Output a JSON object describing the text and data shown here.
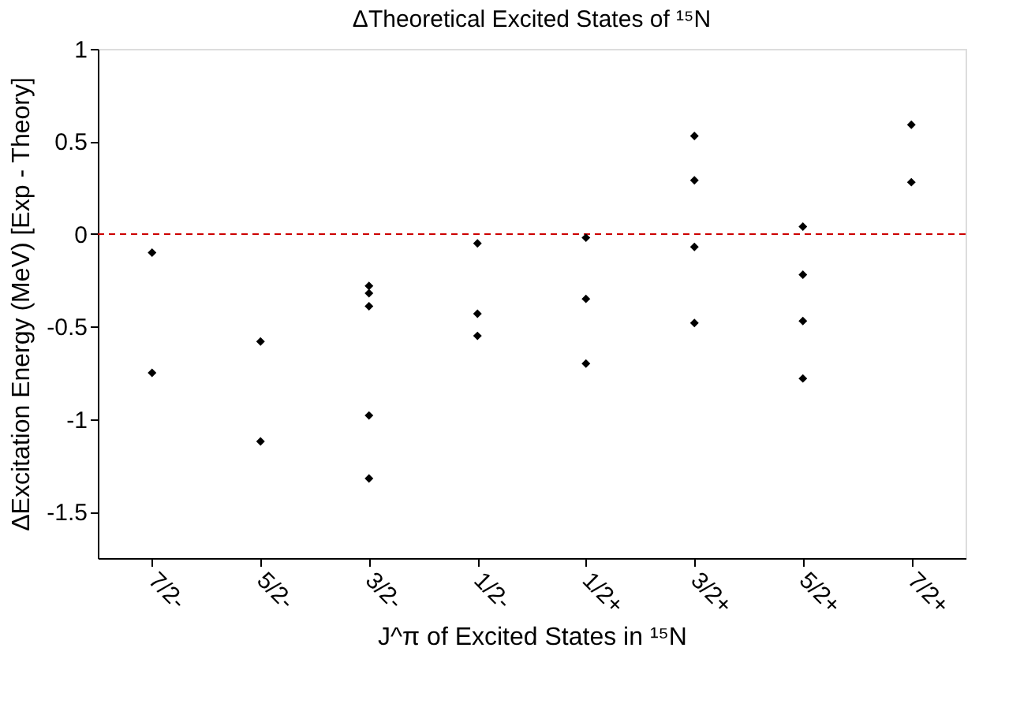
{
  "chart_data": {
    "type": "scatter",
    "title": "ΔTheoretical Excited States of ¹⁵N",
    "xlabel": "J^π of Excited States in ¹⁵N",
    "ylabel": "ΔExcitation Energy (MeV) [Exp - Theory]",
    "categories": [
      "7/2-",
      "5/2-",
      "3/2-",
      "1/2-",
      "1/2+",
      "3/2+",
      "5/2+",
      "7/2+"
    ],
    "series": [
      {
        "color": "#000000",
        "x": [
          "7/2-",
          "7/2-",
          "5/2-",
          "5/2-",
          "3/2-",
          "3/2-",
          "3/2-",
          "3/2-",
          "3/2-",
          "1/2-",
          "1/2-",
          "1/2-",
          "1/2+",
          "1/2+",
          "1/2+",
          "3/2+",
          "3/2+",
          "3/2+",
          "3/2+",
          "5/2+",
          "5/2+",
          "5/2+",
          "5/2+",
          "7/2+",
          "7/2+"
        ],
        "values": [
          -0.1,
          -0.75,
          -0.58,
          -1.12,
          -0.28,
          -0.32,
          -0.39,
          -0.98,
          -1.32,
          -0.05,
          -0.43,
          -0.55,
          -0.02,
          -0.35,
          -0.7,
          0.53,
          0.29,
          -0.07,
          -0.48,
          0.04,
          -0.22,
          -0.47,
          -0.78,
          0.59,
          0.28
        ]
      }
    ],
    "ylim": [
      -1.75,
      1
    ],
    "yticks": [
      -1.5,
      -1,
      -0.5,
      0,
      0.5,
      1
    ],
    "ref_lines": [
      {
        "axis": "y",
        "value": 0,
        "color": "#cc0000",
        "line_style": "dashed"
      }
    ],
    "marker": "diamond",
    "grid": false,
    "legend": false
  }
}
